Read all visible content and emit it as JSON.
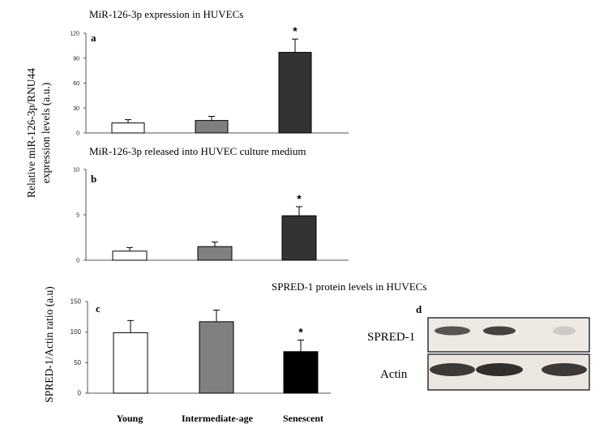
{
  "ylabels": {
    "ab_line1": "Relative miR-126-3p/RNU44",
    "ab_line2": "expression levels  (a.u.)",
    "c": "SPRED-1/Actin ratio (a.u)"
  },
  "categories": [
    "Young",
    "Intermediate-age",
    "Senescent"
  ],
  "colors": {
    "white": "#ffffff",
    "gray": "#808080",
    "dark": "#333333",
    "black": "#000000"
  },
  "chart_data": [
    {
      "id": "a",
      "type": "bar",
      "panel_label": "a",
      "title": "MiR-126-3p  expression in HUVECs",
      "categories": [
        "Young",
        "Intermediate-age",
        "Senescent"
      ],
      "values": [
        12,
        15,
        97
      ],
      "errors": [
        4,
        5,
        16
      ],
      "significance": [
        "",
        "",
        "*"
      ],
      "ylim": [
        0,
        120
      ],
      "yticks": [
        0,
        30,
        60,
        90,
        120
      ],
      "colors": [
        "#ffffff",
        "#808080",
        "#333333"
      ]
    },
    {
      "id": "b",
      "type": "bar",
      "panel_label": "b",
      "title": "MiR-126-3p  released into HUVEC culture medium",
      "categories": [
        "Young",
        "Intermediate-age",
        "Senescent"
      ],
      "values": [
        1.0,
        1.5,
        4.9
      ],
      "errors": [
        0.4,
        0.5,
        1.0
      ],
      "significance": [
        "",
        "",
        "*"
      ],
      "ylim": [
        0,
        10
      ],
      "yticks": [
        0,
        5,
        10
      ],
      "colors": [
        "#ffffff",
        "#808080",
        "#333333"
      ]
    },
    {
      "id": "c",
      "type": "bar",
      "panel_label": "c",
      "title": "SPRED-1 protein levels in HUVECs",
      "categories": [
        "Young",
        "Intermediate-age",
        "Senescent"
      ],
      "values": [
        99,
        117,
        68
      ],
      "errors": [
        20,
        19,
        19
      ],
      "significance": [
        "",
        "",
        "*"
      ],
      "ylim": [
        0,
        150
      ],
      "yticks": [
        0,
        50,
        100,
        150
      ],
      "colors": [
        "#ffffff",
        "#808080",
        "#000000"
      ]
    }
  ],
  "blot": {
    "panel_label": "d",
    "rows": [
      {
        "label": "SPRED-1",
        "band_intensity": [
          0.75,
          0.85,
          0.15
        ]
      },
      {
        "label": "Actin",
        "band_intensity": [
          0.9,
          0.95,
          0.9
        ]
      }
    ]
  }
}
